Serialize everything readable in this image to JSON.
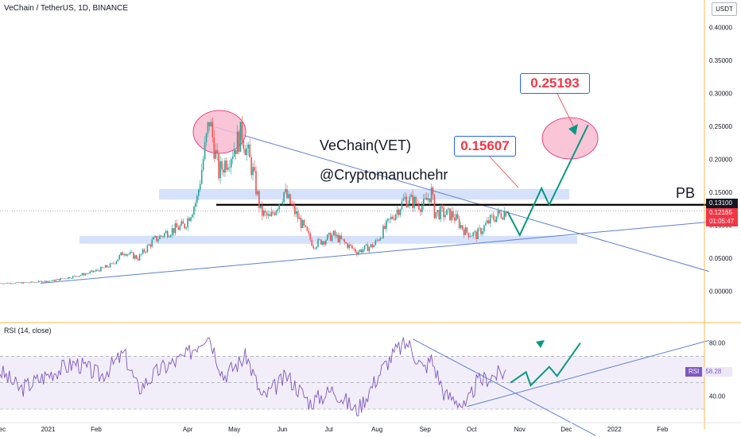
{
  "header": {
    "title": "VeChain / TetherUS, 1D, BINANCE"
  },
  "currency_button": "USDT",
  "annotations": {
    "title": "VeChain(VET)",
    "author": "@Cryptomanuchehr",
    "target1": "0.15607",
    "target2": "0.25193",
    "pb_label": "PB"
  },
  "price_axis": {
    "ticks": [
      "0.40000",
      "0.35000",
      "0.30000",
      "0.25000",
      "0.20000",
      "0.15000",
      "0.10000",
      "0.05000",
      "0.00000"
    ],
    "black_level": "0.13100",
    "last_price": "0.12165",
    "countdown": "01:05:47"
  },
  "time_axis": {
    "labels": [
      "Dec",
      "2021",
      "Feb",
      "Apr",
      "May",
      "Jun",
      "Jul",
      "Aug",
      "Sep",
      "Oct",
      "Nov",
      "Dec",
      "2022",
      "Feb"
    ]
  },
  "rsi": {
    "header": "RSI (14, close)",
    "ticks": [
      "80.00",
      "40.00"
    ],
    "tag_label": "RSI",
    "value": "58.28"
  },
  "colors": {
    "up": "#26a69a",
    "down": "#ef5350",
    "trend": "#5b7fd6",
    "rsi_line": "#7e57c2",
    "forecast": "#089981",
    "target_text": "#f23645"
  },
  "chart_data": {
    "type": "candlestick",
    "symbol": "VETUSDT",
    "timeframe": "1D",
    "x_range": [
      "2020-12-01",
      "2022-02-28"
    ],
    "ylim": [
      -0.02,
      0.42
    ],
    "close_series": [
      {
        "date": "2020-12-01",
        "close": 0.012
      },
      {
        "date": "2020-12-20",
        "close": 0.013
      },
      {
        "date": "2021-01-05",
        "close": 0.016
      },
      {
        "date": "2021-01-20",
        "close": 0.023
      },
      {
        "date": "2021-02-01",
        "close": 0.03
      },
      {
        "date": "2021-02-12",
        "close": 0.04
      },
      {
        "date": "2021-02-20",
        "close": 0.06
      },
      {
        "date": "2021-03-01",
        "close": 0.05
      },
      {
        "date": "2021-03-10",
        "close": 0.075
      },
      {
        "date": "2021-03-20",
        "close": 0.09
      },
      {
        "date": "2021-03-31",
        "close": 0.1
      },
      {
        "date": "2021-04-08",
        "close": 0.14
      },
      {
        "date": "2021-04-12",
        "close": 0.2
      },
      {
        "date": "2021-04-16",
        "close": 0.26
      },
      {
        "date": "2021-04-22",
        "close": 0.18
      },
      {
        "date": "2021-04-30",
        "close": 0.21
      },
      {
        "date": "2021-05-07",
        "close": 0.24
      },
      {
        "date": "2021-05-14",
        "close": 0.18
      },
      {
        "date": "2021-05-19",
        "close": 0.12
      },
      {
        "date": "2021-05-25",
        "close": 0.11
      },
      {
        "date": "2021-06-03",
        "close": 0.15
      },
      {
        "date": "2021-06-10",
        "close": 0.12
      },
      {
        "date": "2021-06-22",
        "close": 0.07
      },
      {
        "date": "2021-07-05",
        "close": 0.085
      },
      {
        "date": "2021-07-20",
        "close": 0.06
      },
      {
        "date": "2021-07-31",
        "close": 0.07
      },
      {
        "date": "2021-08-14",
        "close": 0.12
      },
      {
        "date": "2021-08-20",
        "close": 0.14
      },
      {
        "date": "2021-09-01",
        "close": 0.13
      },
      {
        "date": "2021-09-06",
        "close": 0.15
      },
      {
        "date": "2021-09-08",
        "close": 0.12
      },
      {
        "date": "2021-09-20",
        "close": 0.115
      },
      {
        "date": "2021-09-28",
        "close": 0.09
      },
      {
        "date": "2021-10-05",
        "close": 0.085
      },
      {
        "date": "2021-10-15",
        "close": 0.11
      },
      {
        "date": "2021-10-24",
        "close": 0.12165
      }
    ],
    "levels": {
      "black_line": 0.131
    },
    "zones": [
      {
        "from": 0.139,
        "to": 0.155
      },
      {
        "from": 0.072,
        "to": 0.084
      }
    ],
    "trendlines": [
      {
        "from": {
          "date": "2020-12-27",
          "value": 0.012
        },
        "to": {
          "date": "2022-03-03",
          "value": 0.105
        }
      },
      {
        "from": {
          "date": "2021-04-17",
          "value": 0.25
        },
        "to": {
          "date": "2022-03-03",
          "value": 0.03
        }
      }
    ],
    "forecast_path": [
      {
        "date": "2021-10-24",
        "value": 0.121
      },
      {
        "date": "2021-11-01",
        "value": 0.085
      },
      {
        "date": "2021-11-15",
        "value": 0.156
      },
      {
        "date": "2021-11-20",
        "value": 0.131
      },
      {
        "date": "2021-12-15",
        "value": 0.252
      }
    ],
    "targets": [
      0.15607,
      0.25193
    ],
    "rsi": {
      "period": 14,
      "ylim": [
        20,
        95
      ],
      "levels": [
        70,
        30
      ],
      "last": 58.28,
      "series": [
        {
          "date": "2020-12-01",
          "value": 60
        },
        {
          "date": "2020-12-15",
          "value": 45
        },
        {
          "date": "2021-01-05",
          "value": 58
        },
        {
          "date": "2021-01-20",
          "value": 65
        },
        {
          "date": "2021-02-05",
          "value": 55
        },
        {
          "date": "2021-02-20",
          "value": 72
        },
        {
          "date": "2021-03-01",
          "value": 45
        },
        {
          "date": "2021-03-15",
          "value": 60
        },
        {
          "date": "2021-04-01",
          "value": 70
        },
        {
          "date": "2021-04-15",
          "value": 88
        },
        {
          "date": "2021-04-25",
          "value": 55
        },
        {
          "date": "2021-05-10",
          "value": 70
        },
        {
          "date": "2021-05-20",
          "value": 38
        },
        {
          "date": "2021-06-05",
          "value": 55
        },
        {
          "date": "2021-06-20",
          "value": 35
        },
        {
          "date": "2021-07-05",
          "value": 45
        },
        {
          "date": "2021-07-20",
          "value": 28
        },
        {
          "date": "2021-08-05",
          "value": 60
        },
        {
          "date": "2021-08-15",
          "value": 75
        },
        {
          "date": "2021-08-22",
          "value": 80
        },
        {
          "date": "2021-09-01",
          "value": 60
        },
        {
          "date": "2021-09-06",
          "value": 68
        },
        {
          "date": "2021-09-15",
          "value": 40
        },
        {
          "date": "2021-09-22",
          "value": 38
        },
        {
          "date": "2021-09-28",
          "value": 30
        },
        {
          "date": "2021-10-05",
          "value": 50
        },
        {
          "date": "2021-10-15",
          "value": 55
        },
        {
          "date": "2021-10-24",
          "value": 58.28
        }
      ],
      "trendlines": [
        {
          "from": {
            "date": "2021-08-24",
            "value": 83
          },
          "to": {
            "date": "2021-12-20",
            "value": 10
          }
        },
        {
          "from": {
            "date": "2021-09-28",
            "value": 32
          },
          "to": {
            "date": "2022-03-03",
            "value": 82
          }
        }
      ],
      "forecast_path": [
        {
          "date": "2021-10-26",
          "value": 50
        },
        {
          "date": "2021-11-05",
          "value": 58
        },
        {
          "date": "2021-11-08",
          "value": 48
        },
        {
          "date": "2021-11-20",
          "value": 62
        },
        {
          "date": "2021-11-25",
          "value": 55
        },
        {
          "date": "2021-12-10",
          "value": 80
        }
      ]
    }
  }
}
